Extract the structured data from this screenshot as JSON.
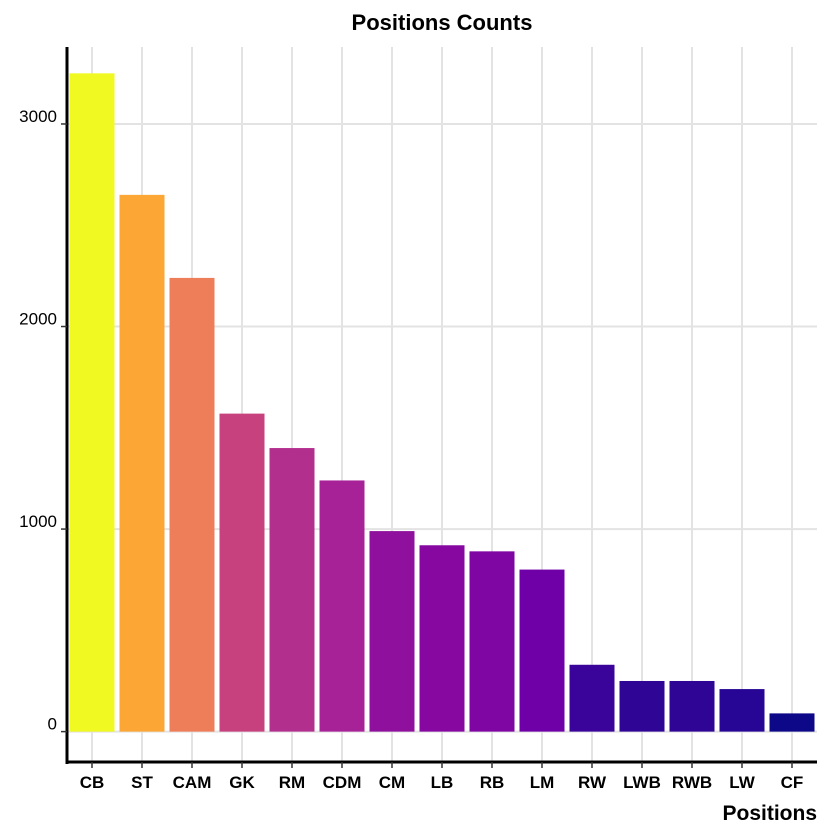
{
  "chart_data": {
    "type": "bar",
    "title": "Positions Counts",
    "xlabel": "Positions",
    "ylabel": "",
    "categories": [
      "CB",
      "ST",
      "CAM",
      "GK",
      "RM",
      "CDM",
      "CM",
      "LB",
      "RB",
      "LM",
      "RW",
      "LWB",
      "RWB",
      "LW",
      "CF"
    ],
    "values": [
      3250,
      2650,
      2240,
      1570,
      1400,
      1240,
      990,
      920,
      890,
      800,
      330,
      250,
      250,
      210,
      90
    ],
    "colors": [
      "#F0F921",
      "#FCA636",
      "#EE7E5A",
      "#C6417D",
      "#B22F8E",
      "#A72197",
      "#8E109C",
      "#8608A1",
      "#7F06A3",
      "#6F00A8",
      "#3A049A",
      "#2F0596",
      "#2F0596",
      "#270595",
      "#0D0887"
    ],
    "ylim": [
      -150,
      3380
    ],
    "yticks": [
      0,
      1000,
      2000,
      3000
    ],
    "grid": true,
    "legend": "none"
  }
}
